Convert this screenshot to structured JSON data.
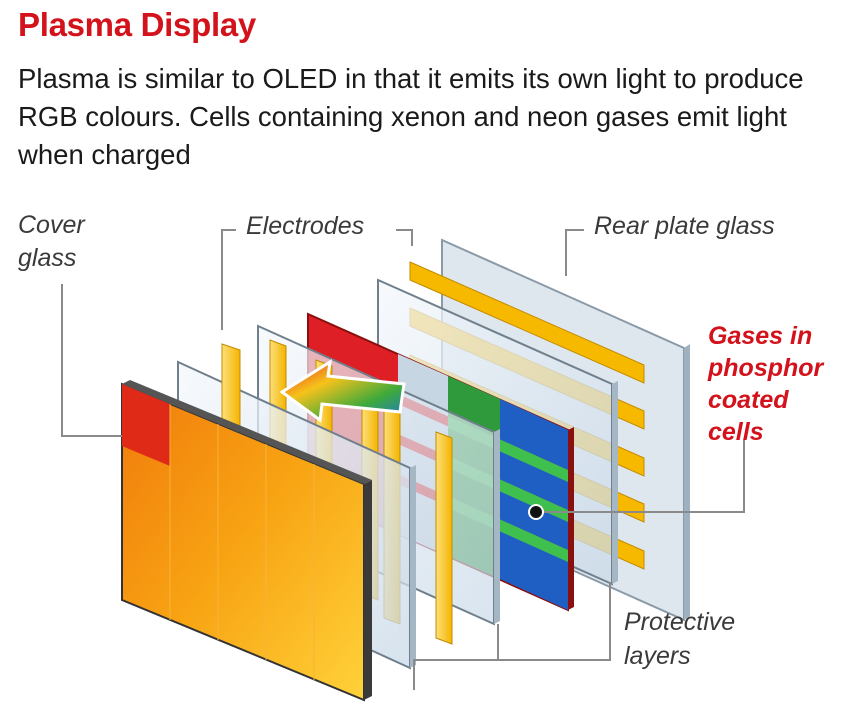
{
  "header": {
    "title": "Plasma Display",
    "description": "Plasma is similar to OLED in that it emits its own light to produce RGB colours. Cells containing xenon and neon gases emit light when charged"
  },
  "labels": {
    "cover_glass": [
      "Cover",
      "glass"
    ],
    "electrodes": "Electrodes",
    "rear_plate_glass": "Rear plate glass",
    "gases": [
      "Gases in",
      "phosphor",
      "coated",
      "cells"
    ],
    "protective_layers": [
      "Protective",
      "layers"
    ]
  },
  "colors": {
    "title_red": "#d3121b",
    "electrode_yellow": "#f7b800",
    "panel_red": "#de1f26",
    "cell_green": "#2e9a3b",
    "cell_blue": "#1f5fc4",
    "cover_orange": "#f28a10"
  },
  "icons": [
    "light-direction-arrow-icon",
    "pointer-dot-icon"
  ]
}
